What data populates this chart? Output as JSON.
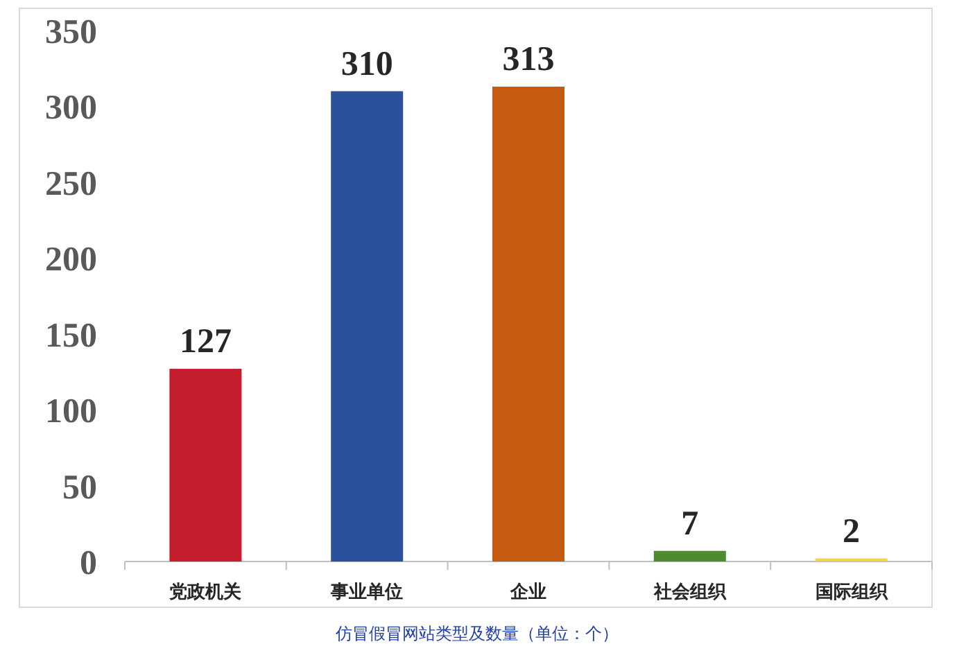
{
  "chart_data": {
    "type": "bar",
    "categories": [
      "党政机关",
      "事业单位",
      "企业",
      "社会组织",
      "国际组织"
    ],
    "values": [
      127,
      310,
      313,
      7,
      2
    ],
    "colors": [
      "#c41e2e",
      "#2b519c",
      "#c55a11",
      "#4e8a2e",
      "#f0d34a"
    ],
    "ylim": [
      0,
      350
    ],
    "yticks": [
      0,
      50,
      100,
      150,
      200,
      250,
      300,
      350
    ],
    "data_labels": true,
    "annotations": [
      "仿冒假冒网站类型及数量（单位：个）"
    ]
  }
}
